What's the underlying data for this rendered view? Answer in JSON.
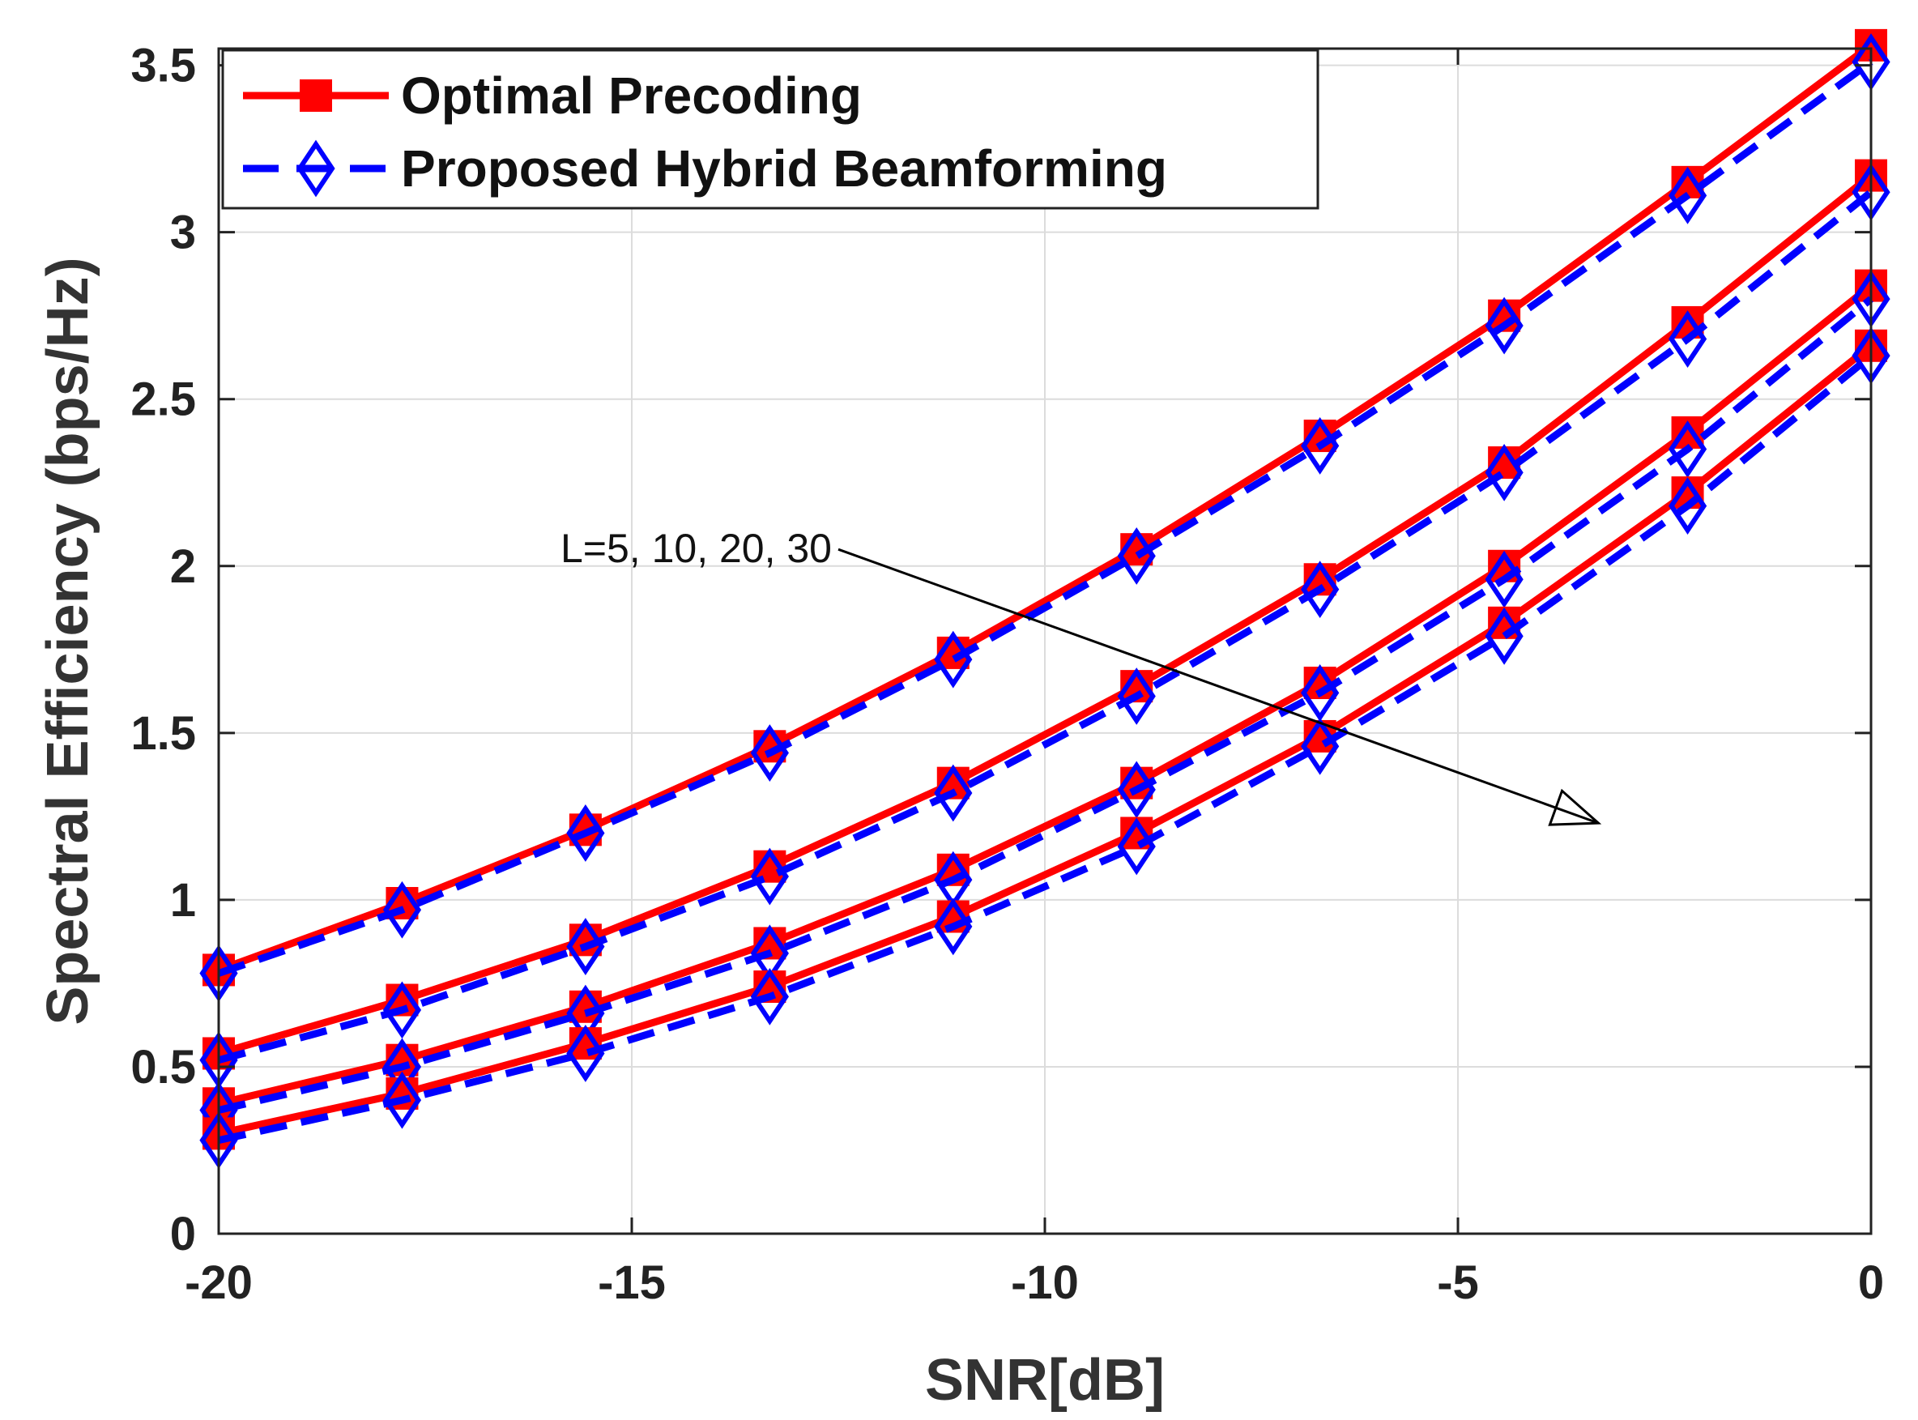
{
  "chart_data": {
    "type": "line",
    "title": "",
    "xlabel": "SNR[dB]",
    "ylabel": "Spectral Efficiency (bps/Hz)",
    "xlim": [
      -20,
      0
    ],
    "ylim": [
      0,
      3.55
    ],
    "xticks": [
      -20,
      -15,
      -10,
      -5,
      0
    ],
    "yticks": [
      0,
      0.5,
      1,
      1.5,
      2,
      2.5,
      3,
      3.5
    ],
    "xtick_labels": [
      "-20",
      "-15",
      "-10",
      "-5",
      "0"
    ],
    "ytick_labels": [
      "0",
      "0.5",
      "1",
      "1.5",
      "2",
      "2.5",
      "3",
      "3.5"
    ],
    "grid": true,
    "legend_placement": "top-left",
    "legend": [
      {
        "label": "Optimal Precoding",
        "color": "#ff0000",
        "marker": "square",
        "style": "solid"
      },
      {
        "label": "Proposed Hybrid Beamforming",
        "color": "#0000ff",
        "marker": "diamond",
        "style": "dashed"
      }
    ],
    "x": [
      -20,
      -17.78,
      -15.56,
      -13.33,
      -11.11,
      -8.89,
      -6.67,
      -4.44,
      -2.22,
      0
    ],
    "series": [
      {
        "legend_index": 0,
        "values": [
          0.79,
          0.99,
          1.21,
          1.46,
          1.74,
          2.05,
          2.39,
          2.75,
          3.15,
          3.56
        ]
      },
      {
        "legend_index": 1,
        "values": [
          0.78,
          0.97,
          1.2,
          1.44,
          1.72,
          2.03,
          2.36,
          2.72,
          3.11,
          3.51
        ]
      },
      {
        "legend_index": 0,
        "values": [
          0.54,
          0.7,
          0.88,
          1.1,
          1.35,
          1.64,
          1.96,
          2.31,
          2.73,
          3.17
        ]
      },
      {
        "legend_index": 1,
        "values": [
          0.52,
          0.67,
          0.86,
          1.07,
          1.32,
          1.61,
          1.93,
          2.28,
          2.68,
          3.12
        ]
      },
      {
        "legend_index": 0,
        "values": [
          0.39,
          0.52,
          0.68,
          0.87,
          1.09,
          1.35,
          1.65,
          2.0,
          2.4,
          2.84
        ]
      },
      {
        "legend_index": 1,
        "values": [
          0.37,
          0.5,
          0.66,
          0.84,
          1.06,
          1.33,
          1.62,
          1.96,
          2.35,
          2.8
        ]
      },
      {
        "legend_index": 0,
        "values": [
          0.3,
          0.42,
          0.57,
          0.74,
          0.95,
          1.2,
          1.49,
          1.83,
          2.22,
          2.66
        ]
      },
      {
        "legend_index": 1,
        "values": [
          0.28,
          0.4,
          0.54,
          0.71,
          0.92,
          1.16,
          1.46,
          1.79,
          2.18,
          2.63
        ]
      }
    ],
    "annotation": {
      "text": "L=5, 10, 20, 30",
      "arrow_from": [
        -12.5,
        2.05
      ],
      "arrow_to": [
        -3.3,
        1.23
      ]
    }
  }
}
